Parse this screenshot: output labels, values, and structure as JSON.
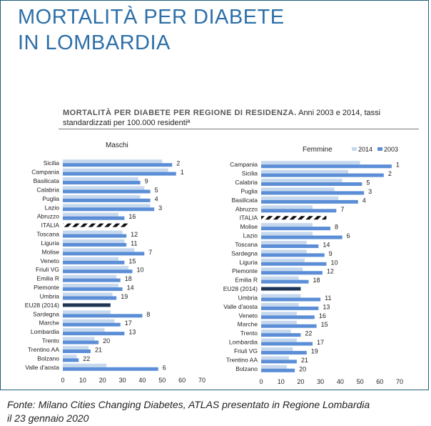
{
  "title": {
    "line1": "MORTALITÀ PER DIABETE",
    "line2": "IN LOMBARDIA"
  },
  "figure_title": {
    "bold": "MORTALITÀ PER DIABETE PER REGIONE DI RESIDENZA.",
    "rest": " Anni 2003 e 2014, tassi standardizzati per 100.000 residentiª"
  },
  "source": {
    "line1": "Fonte: Milano Cities Changing Diabetes, ATLAS presentato in Regione Lombardia",
    "line2": "il 23 gennaio 2020"
  },
  "colors": {
    "s2014": "#c6d8ee",
    "s2003": "#5b8ed6",
    "eu": "#1f3556",
    "frame": "#1f5f7a",
    "title": "#2e6fa8"
  },
  "chart_data": [
    {
      "type": "bar",
      "orientation": "horizontal",
      "title": "Maschi",
      "series_names": [
        "2014",
        "2003"
      ],
      "xlim": [
        0,
        70
      ],
      "xticks": [
        0,
        10,
        20,
        30,
        40,
        50,
        60,
        70
      ],
      "rows": [
        {
          "label": "Sicilia",
          "v2014": 50,
          "v2003": 55,
          "rank": "2"
        },
        {
          "label": "Campania",
          "v2014": 53,
          "v2003": 57,
          "rank": "1"
        },
        {
          "label": "Basilicata",
          "v2014": 38,
          "v2003": 39,
          "rank": "9"
        },
        {
          "label": "Calabria",
          "v2014": 41,
          "v2003": 44,
          "rank": "5"
        },
        {
          "label": "Puglia",
          "v2014": 39,
          "v2003": 44,
          "rank": "4"
        },
        {
          "label": "Lazio",
          "v2014": 44,
          "v2003": 46,
          "rank": "3"
        },
        {
          "label": "Abruzzo",
          "v2014": 28,
          "v2003": 31,
          "rank": "16"
        },
        {
          "label": "ITALIA",
          "v2014": 33,
          "v2003": 33,
          "rank": "",
          "kind": "hatch"
        },
        {
          "label": "Toscana",
          "v2014": 30,
          "v2003": 32,
          "rank": "12"
        },
        {
          "label": "Liguria",
          "v2014": 31,
          "v2003": 32,
          "rank": "11"
        },
        {
          "label": "Molise",
          "v2014": 36,
          "v2003": 41,
          "rank": "7"
        },
        {
          "label": "Veneto",
          "v2014": 28,
          "v2003": 31,
          "rank": "15"
        },
        {
          "label": "Friuli VG",
          "v2014": 33,
          "v2003": 35,
          "rank": "10"
        },
        {
          "label": "Emilia R",
          "v2014": 27,
          "v2003": 29,
          "rank": "18"
        },
        {
          "label": "Piemonte",
          "v2014": 28,
          "v2003": 30,
          "rank": "14"
        },
        {
          "label": "Umbria",
          "v2014": 25,
          "v2003": 27,
          "rank": "19"
        },
        {
          "label": "EU28 (2014)",
          "v2014": 24,
          "v2003": 24,
          "rank": "",
          "kind": "eu"
        },
        {
          "label": "Sardegna",
          "v2014": 24,
          "v2003": 40,
          "rank": "8"
        },
        {
          "label": "Marche",
          "v2014": 26,
          "v2003": 29,
          "rank": "17"
        },
        {
          "label": "Lombardia",
          "v2014": 21,
          "v2003": 31,
          "rank": "13"
        },
        {
          "label": "Trento",
          "v2014": 16,
          "v2003": 18,
          "rank": "20"
        },
        {
          "label": "Trentino AA",
          "v2014": 13,
          "v2003": 14,
          "rank": "21"
        },
        {
          "label": "Bolzano",
          "v2014": 7,
          "v2003": 8,
          "rank": "22"
        },
        {
          "label": "Valle d'aosta",
          "v2014": 22,
          "v2003": 48,
          "rank": "6"
        }
      ]
    },
    {
      "type": "bar",
      "orientation": "horizontal",
      "title": "Femmine",
      "legend": [
        "2014",
        "2003"
      ],
      "xlim": [
        0,
        70
      ],
      "xticks": [
        0,
        10,
        20,
        30,
        40,
        50,
        60,
        70
      ],
      "rows": [
        {
          "label": "Campania",
          "v2014": 50,
          "v2003": 66,
          "rank": "1"
        },
        {
          "label": "Sicilia",
          "v2014": 44,
          "v2003": 62,
          "rank": "2"
        },
        {
          "label": "Calabria",
          "v2014": 41,
          "v2003": 51,
          "rank": "5"
        },
        {
          "label": "Puglia",
          "v2014": 37,
          "v2003": 52,
          "rank": "3"
        },
        {
          "label": "Basilicata",
          "v2014": 39,
          "v2003": 49,
          "rank": "4"
        },
        {
          "label": "Abruzzo",
          "v2014": 26,
          "v2003": 38,
          "rank": "7"
        },
        {
          "label": "ITALIA",
          "v2014": 33,
          "v2003": 33,
          "rank": "",
          "kind": "hatch"
        },
        {
          "label": "Molise",
          "v2014": 26,
          "v2003": 35,
          "rank": "8"
        },
        {
          "label": "Lazio",
          "v2014": 26,
          "v2003": 41,
          "rank": "6"
        },
        {
          "label": "Toscana",
          "v2014": 23,
          "v2003": 29,
          "rank": "14"
        },
        {
          "label": "Sardegna",
          "v2014": 23,
          "v2003": 32,
          "rank": "9"
        },
        {
          "label": "Liguria",
          "v2014": 22,
          "v2003": 33,
          "rank": "10"
        },
        {
          "label": "Piemonte",
          "v2014": 21,
          "v2003": 31,
          "rank": "12"
        },
        {
          "label": "Emilia R",
          "v2014": 19,
          "v2003": 24,
          "rank": "18"
        },
        {
          "label": "EU28 (2014)",
          "v2014": 20,
          "v2003": 20,
          "rank": "",
          "kind": "eu"
        },
        {
          "label": "Umbria",
          "v2014": 20,
          "v2003": 30,
          "rank": "11"
        },
        {
          "label": "Valle d'aosta",
          "v2014": 19,
          "v2003": 29,
          "rank": "13"
        },
        {
          "label": "Veneto",
          "v2014": 18,
          "v2003": 27,
          "rank": "16"
        },
        {
          "label": "Marche",
          "v2014": 18,
          "v2003": 28,
          "rank": "15"
        },
        {
          "label": "Trento",
          "v2014": 15,
          "v2003": 20,
          "rank": "22"
        },
        {
          "label": "Lombardia",
          "v2014": 18,
          "v2003": 26,
          "rank": "17"
        },
        {
          "label": "Friuli VG",
          "v2014": 16,
          "v2003": 23,
          "rank": "19"
        },
        {
          "label": "Trentino AA",
          "v2014": 14,
          "v2003": 18,
          "rank": "21"
        },
        {
          "label": "Bolzano",
          "v2014": 13,
          "v2003": 17,
          "rank": "20"
        }
      ]
    }
  ]
}
